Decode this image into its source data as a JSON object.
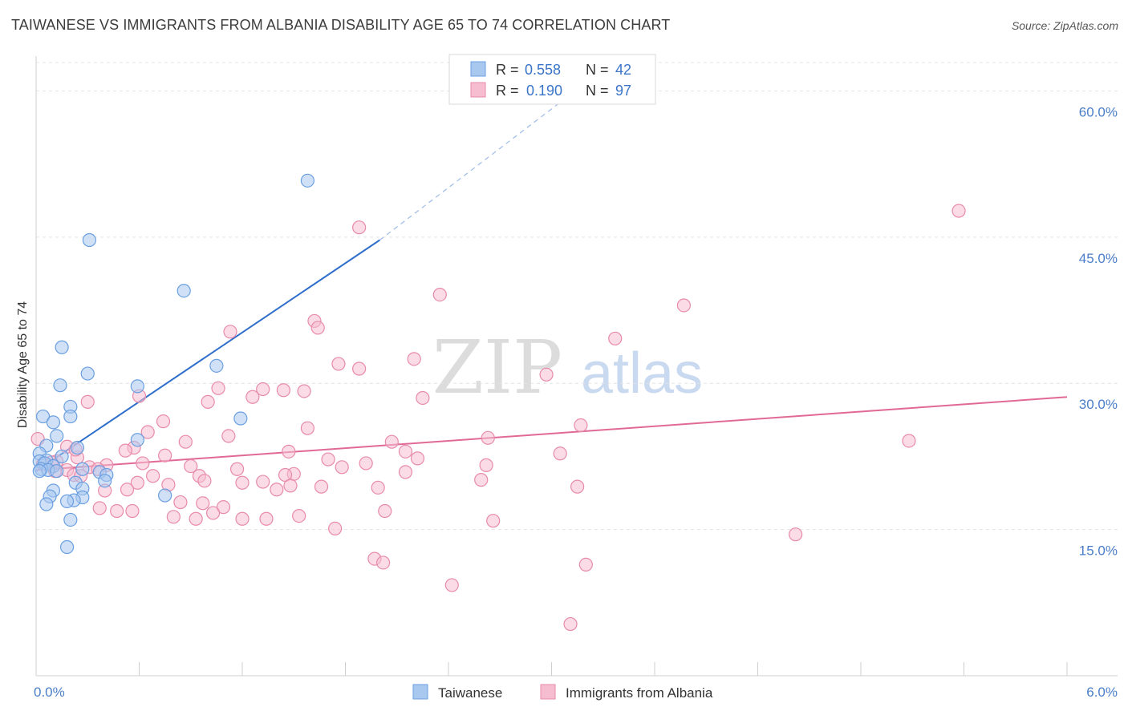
{
  "title": "TAIWANESE VS IMMIGRANTS FROM ALBANIA DISABILITY AGE 65 TO 74 CORRELATION CHART",
  "source": "Source: ZipAtlas.com",
  "watermark": {
    "zip": "ZIP",
    "atlas": "atlas"
  },
  "chart_data": {
    "type": "scatter",
    "title": "TAIWANESE VS IMMIGRANTS FROM ALBANIA DISABILITY AGE 65 TO 74 CORRELATION CHART",
    "xlabel": "",
    "ylabel": "Disability Age 65 to 74",
    "xlim": [
      0,
      6
    ],
    "ylim": [
      0,
      63
    ],
    "y_ticks": [
      15,
      30,
      45,
      60
    ],
    "y_tick_labels": [
      "15.0%",
      "30.0%",
      "45.0%",
      "60.0%"
    ],
    "x_tick_labels": [
      "0.0%",
      "6.0%"
    ],
    "grid": true,
    "legend": {
      "position": "top-center",
      "rows": [
        {
          "r_label": "R =",
          "r_value": "0.558",
          "n_label": "N =",
          "n_value": "42"
        },
        {
          "r_label": "R =",
          "r_value": "0.190",
          "n_label": "N =",
          "n_value": "97"
        }
      ]
    },
    "series": [
      {
        "name": "Taiwanese",
        "color": "#a9c8f0",
        "stroke": "#6a9fe0",
        "trend_color": "#2f6fcb",
        "trend": {
          "x0": 0.0,
          "y0": 21.0,
          "x1": 2.0,
          "y1": 44.7,
          "dash_to_x": 3.1,
          "dash_to_y": 59.5
        },
        "points": [
          [
            1.58,
            50.8
          ],
          [
            0.31,
            44.7
          ],
          [
            0.86,
            39.5
          ],
          [
            0.15,
            33.7
          ],
          [
            1.05,
            31.8
          ],
          [
            0.3,
            31.0
          ],
          [
            0.59,
            29.7
          ],
          [
            0.14,
            29.8
          ],
          [
            0.2,
            27.6
          ],
          [
            0.04,
            26.6
          ],
          [
            0.2,
            26.6
          ],
          [
            1.19,
            26.4
          ],
          [
            0.1,
            26.0
          ],
          [
            0.12,
            24.6
          ],
          [
            0.59,
            24.2
          ],
          [
            0.06,
            23.6
          ],
          [
            0.24,
            23.4
          ],
          [
            0.02,
            22.8
          ],
          [
            0.15,
            22.5
          ],
          [
            0.06,
            22.1
          ],
          [
            0.02,
            22.0
          ],
          [
            0.05,
            21.8
          ],
          [
            0.1,
            21.5
          ],
          [
            0.03,
            21.2
          ],
          [
            0.07,
            21.1
          ],
          [
            0.02,
            21.0
          ],
          [
            0.12,
            21.0
          ],
          [
            0.27,
            21.2
          ],
          [
            0.37,
            20.9
          ],
          [
            0.41,
            20.6
          ],
          [
            0.23,
            19.8
          ],
          [
            0.4,
            20.0
          ],
          [
            0.27,
            19.2
          ],
          [
            0.1,
            19.0
          ],
          [
            0.08,
            18.4
          ],
          [
            0.27,
            18.3
          ],
          [
            0.75,
            18.5
          ],
          [
            0.22,
            18.0
          ],
          [
            0.18,
            17.9
          ],
          [
            0.06,
            17.6
          ],
          [
            0.2,
            16.0
          ],
          [
            0.18,
            13.2
          ]
        ]
      },
      {
        "name": "Immigrants from Albania",
        "color": "#f6bdd1",
        "stroke": "#e88aab",
        "trend_color": "#e06a95",
        "trend": {
          "x0": 0.0,
          "y0": 21.1,
          "x1": 6.0,
          "y1": 28.6
        },
        "points": [
          [
            5.37,
            47.7
          ],
          [
            1.88,
            46.0
          ],
          [
            2.35,
            39.1
          ],
          [
            3.77,
            38.0
          ],
          [
            1.62,
            36.4
          ],
          [
            1.64,
            35.7
          ],
          [
            1.13,
            35.3
          ],
          [
            3.37,
            34.6
          ],
          [
            2.2,
            32.5
          ],
          [
            1.76,
            32.0
          ],
          [
            1.88,
            31.5
          ],
          [
            2.97,
            30.9
          ],
          [
            1.06,
            29.5
          ],
          [
            1.32,
            29.4
          ],
          [
            1.44,
            29.3
          ],
          [
            1.56,
            29.2
          ],
          [
            0.6,
            28.7
          ],
          [
            1.26,
            28.6
          ],
          [
            2.25,
            28.5
          ],
          [
            0.3,
            28.1
          ],
          [
            1.0,
            28.1
          ],
          [
            0.74,
            26.1
          ],
          [
            3.17,
            25.7
          ],
          [
            1.58,
            25.4
          ],
          [
            0.65,
            25.0
          ],
          [
            1.12,
            24.6
          ],
          [
            2.63,
            24.4
          ],
          [
            0.01,
            24.3
          ],
          [
            2.07,
            24.0
          ],
          [
            0.87,
            24.0
          ],
          [
            5.08,
            24.1
          ],
          [
            0.18,
            23.5
          ],
          [
            0.57,
            23.4
          ],
          [
            0.52,
            23.1
          ],
          [
            2.15,
            23.0
          ],
          [
            1.47,
            23.0
          ],
          [
            3.05,
            22.8
          ],
          [
            0.75,
            22.6
          ],
          [
            0.24,
            22.4
          ],
          [
            1.7,
            22.2
          ],
          [
            2.22,
            22.3
          ],
          [
            0.12,
            22.0
          ],
          [
            0.09,
            21.9
          ],
          [
            0.04,
            21.7
          ],
          [
            0.62,
            21.8
          ],
          [
            1.92,
            21.8
          ],
          [
            2.62,
            21.6
          ],
          [
            0.41,
            21.6
          ],
          [
            0.31,
            21.4
          ],
          [
            0.9,
            21.5
          ],
          [
            1.78,
            21.4
          ],
          [
            0.18,
            21.1
          ],
          [
            1.17,
            21.2
          ],
          [
            0.36,
            21.2
          ],
          [
            0.11,
            21.0
          ],
          [
            2.15,
            20.9
          ],
          [
            1.5,
            20.7
          ],
          [
            0.22,
            20.6
          ],
          [
            0.68,
            20.5
          ],
          [
            0.95,
            20.5
          ],
          [
            1.45,
            20.6
          ],
          [
            0.26,
            20.5
          ],
          [
            2.59,
            20.1
          ],
          [
            0.98,
            20.0
          ],
          [
            0.59,
            19.8
          ],
          [
            1.32,
            19.9
          ],
          [
            1.2,
            19.8
          ],
          [
            1.48,
            19.5
          ],
          [
            0.77,
            19.6
          ],
          [
            1.66,
            19.4
          ],
          [
            3.15,
            19.4
          ],
          [
            1.99,
            19.3
          ],
          [
            1.4,
            19.1
          ],
          [
            0.53,
            19.1
          ],
          [
            0.4,
            19.0
          ],
          [
            0.84,
            17.8
          ],
          [
            0.97,
            17.7
          ],
          [
            1.09,
            17.3
          ],
          [
            0.37,
            17.2
          ],
          [
            0.47,
            16.9
          ],
          [
            0.56,
            16.9
          ],
          [
            2.03,
            16.9
          ],
          [
            1.03,
            16.7
          ],
          [
            1.53,
            16.4
          ],
          [
            0.8,
            16.3
          ],
          [
            0.93,
            16.1
          ],
          [
            1.2,
            16.1
          ],
          [
            1.34,
            16.1
          ],
          [
            2.66,
            15.9
          ],
          [
            1.74,
            15.1
          ],
          [
            4.42,
            14.5
          ],
          [
            1.97,
            12.0
          ],
          [
            2.02,
            11.6
          ],
          [
            3.2,
            11.4
          ],
          [
            2.42,
            9.3
          ],
          [
            3.11,
            5.3
          ],
          [
            0.23,
            23.2
          ]
        ]
      }
    ]
  },
  "bottom_legend": [
    {
      "label": "Taiwanese"
    },
    {
      "label": "Immigrants from Albania"
    }
  ]
}
